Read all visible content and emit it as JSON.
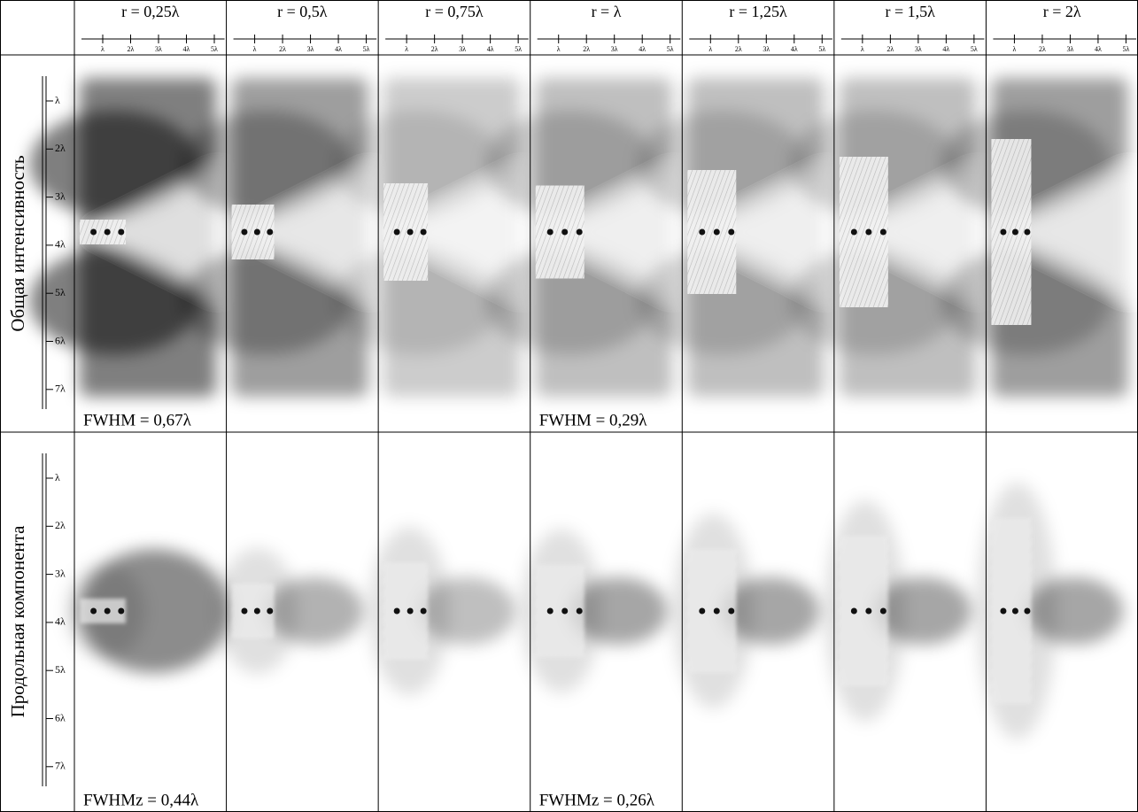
{
  "columns": [
    "r = 0,25λ",
    "r = 0,5λ",
    "r = 0,75λ",
    "r = λ",
    "r = 1,25λ",
    "r = 1,5λ",
    "r = 2λ"
  ],
  "x_scale_labels": [
    "λ",
    "2λ",
    "3λ",
    "4λ",
    "5λ"
  ],
  "y_scale_labels": [
    "λ",
    "2λ",
    "3λ",
    "4λ",
    "5λ",
    "6λ",
    "7λ"
  ],
  "rows": [
    {
      "label": "Общая интенсивность",
      "fwhm": {
        "0": "FWHM = 0,67λ",
        "3": "FWHM = 0,29λ"
      }
    },
    {
      "label": "Продольная компонента",
      "fwhm": {
        "0": "FWHMz = 0,44λ",
        "3": "FWHMz = 0,26λ"
      }
    }
  ]
}
